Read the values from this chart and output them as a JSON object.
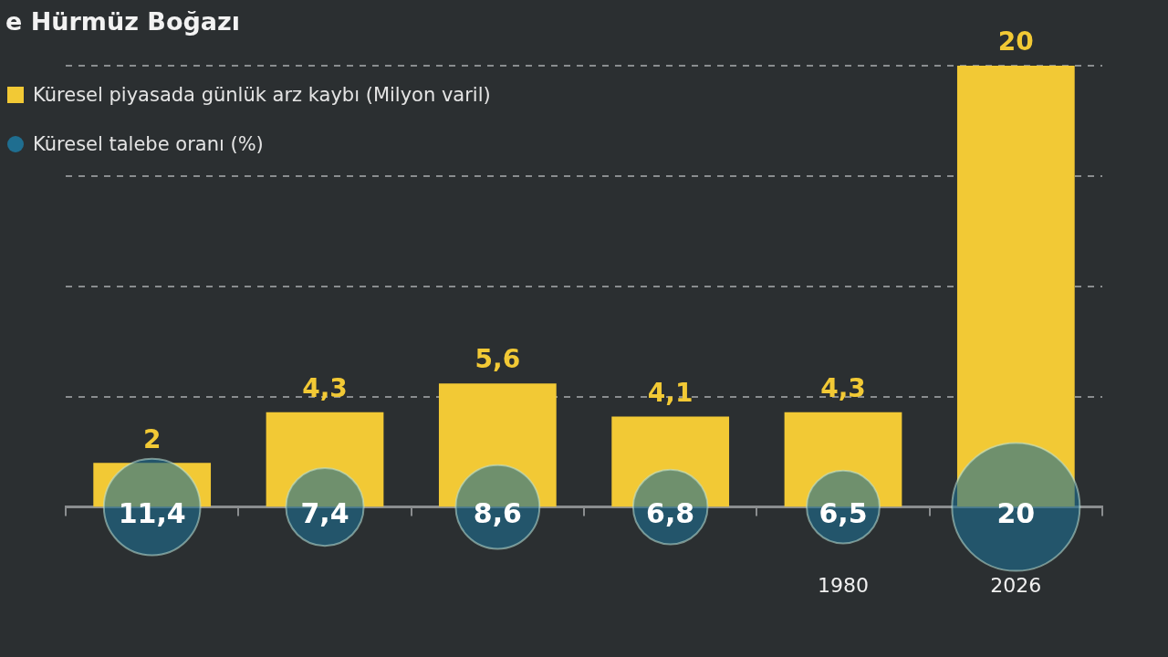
{
  "chart_data": {
    "type": "bar",
    "title": "e Hürmüz Boğazı",
    "categories": [
      null,
      null,
      null,
      null,
      "1980",
      "2026"
    ],
    "series": [
      {
        "name": "Küresel piyasada günlük arz kaybı (Milyon varil)",
        "color": "#f2c935",
        "values": [
          2,
          4.3,
          5.6,
          4.1,
          4.3,
          20
        ],
        "value_labels": [
          "2",
          "4,3",
          "5,6",
          "4,1",
          "4,3",
          "20"
        ]
      },
      {
        "name": "Küresel talebe oranı (%)",
        "type": "bubble",
        "color": "#1f6e90",
        "values": [
          0,
          0,
          0,
          0,
          0,
          0
        ],
        "sizes": [
          11.4,
          7.4,
          8.6,
          6.8,
          6.5,
          20
        ],
        "value_labels": [
          "11,4",
          "7,4",
          "8,6",
          "6,8",
          "6,5",
          "20"
        ]
      }
    ],
    "ylim": [
      0,
      20
    ],
    "yticks": [
      {
        "value": 5,
        "label": null
      },
      {
        "value": 10,
        "label": null
      },
      {
        "value": 15,
        "label": null
      },
      {
        "value": 20,
        "label": null
      }
    ],
    "grid": "y",
    "legend": "top left",
    "tick_labels": "x"
  }
}
